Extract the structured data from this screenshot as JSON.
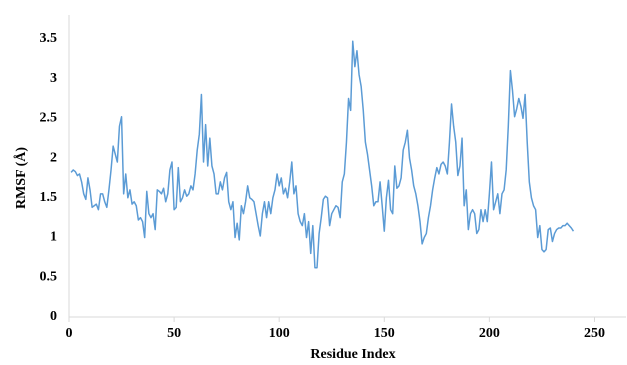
{
  "chart_data": {
    "type": "line",
    "x_label": "Residue Index",
    "y_label": "RMSF (Å)",
    "color": "#5b9bd5",
    "x": [
      1,
      2,
      3,
      4,
      5,
      6,
      7,
      8,
      9,
      10,
      11,
      12,
      13,
      14,
      15,
      16,
      17,
      18,
      19,
      20,
      21,
      22,
      23,
      24,
      25,
      26,
      27,
      28,
      29,
      30,
      31,
      32,
      33,
      34,
      35,
      36,
      37,
      38,
      39,
      40,
      41,
      42,
      43,
      44,
      45,
      46,
      47,
      48,
      49,
      50,
      51,
      52,
      53,
      54,
      55,
      56,
      57,
      58,
      59,
      60,
      61,
      62,
      63,
      64,
      65,
      66,
      67,
      68,
      69,
      70,
      71,
      72,
      73,
      74,
      75,
      76,
      77,
      78,
      79,
      80,
      81,
      82,
      83,
      84,
      85,
      86,
      87,
      88,
      89,
      90,
      91,
      92,
      93,
      94,
      95,
      96,
      97,
      98,
      99,
      100,
      101,
      102,
      103,
      104,
      105,
      106,
      107,
      108,
      109,
      110,
      111,
      112,
      113,
      114,
      115,
      116,
      117,
      118,
      119,
      120,
      121,
      122,
      123,
      124,
      125,
      126,
      127,
      128,
      129,
      130,
      131,
      132,
      133,
      134,
      135,
      136,
      137,
      138,
      139,
      140,
      141,
      142,
      143,
      144,
      145,
      146,
      147,
      148,
      149,
      150,
      151,
      152,
      153,
      154,
      155,
      156,
      157,
      158,
      159,
      160,
      161,
      162,
      163,
      164,
      165,
      166,
      167,
      168,
      169,
      170,
      171,
      172,
      173,
      174,
      175,
      176,
      177,
      178,
      179,
      180,
      181,
      182,
      183,
      184,
      185,
      186,
      187,
      188,
      189,
      190,
      191,
      192,
      193,
      194,
      195,
      196,
      197,
      198,
      199,
      200,
      201,
      202,
      203,
      204,
      205,
      206,
      207,
      208,
      209,
      210,
      211,
      212,
      213,
      214,
      215,
      216,
      217,
      218,
      219,
      220,
      221,
      222,
      223,
      224,
      225,
      226,
      227,
      228,
      229,
      230,
      231,
      232,
      233,
      234,
      235,
      236,
      237,
      238,
      239,
      240
    ],
    "values": [
      1.82,
      1.85,
      1.83,
      1.78,
      1.8,
      1.7,
      1.55,
      1.48,
      1.75,
      1.6,
      1.38,
      1.4,
      1.42,
      1.35,
      1.55,
      1.55,
      1.45,
      1.38,
      1.6,
      1.85,
      2.15,
      2.05,
      1.95,
      2.4,
      2.52,
      1.55,
      1.8,
      1.5,
      1.6,
      1.42,
      1.45,
      1.4,
      1.22,
      1.25,
      1.2,
      1.0,
      1.58,
      1.3,
      1.25,
      1.3,
      1.1,
      1.6,
      1.58,
      1.55,
      1.62,
      1.45,
      1.55,
      1.85,
      1.95,
      1.35,
      1.38,
      1.88,
      1.45,
      1.5,
      1.6,
      1.52,
      1.55,
      1.65,
      1.6,
      1.8,
      2.1,
      2.3,
      2.8,
      1.95,
      2.42,
      1.9,
      2.25,
      1.9,
      1.8,
      1.55,
      1.55,
      1.7,
      1.6,
      1.75,
      1.82,
      1.45,
      1.35,
      1.45,
      1.0,
      1.18,
      0.97,
      1.4,
      1.3,
      1.45,
      1.65,
      1.5,
      1.48,
      1.45,
      1.3,
      1.15,
      1.02,
      1.3,
      1.45,
      1.25,
      1.45,
      1.3,
      1.5,
      1.6,
      1.8,
      1.65,
      1.75,
      1.55,
      1.62,
      1.5,
      1.7,
      1.95,
      1.55,
      1.65,
      1.3,
      1.2,
      1.15,
      1.3,
      1.0,
      1.2,
      0.8,
      1.15,
      0.62,
      0.62,
      1.05,
      1.25,
      1.48,
      1.52,
      1.5,
      1.15,
      1.3,
      1.35,
      1.4,
      1.38,
      1.25,
      1.7,
      1.8,
      2.2,
      2.75,
      2.6,
      3.47,
      3.15,
      3.35,
      3.05,
      2.9,
      2.6,
      2.2,
      2.05,
      1.85,
      1.65,
      1.4,
      1.45,
      1.45,
      1.7,
      1.4,
      1.08,
      1.5,
      1.72,
      1.35,
      1.3,
      1.9,
      1.62,
      1.65,
      1.75,
      2.1,
      2.2,
      2.35,
      2.0,
      1.85,
      1.65,
      1.55,
      1.4,
      1.2,
      0.92,
      1.0,
      1.05,
      1.25,
      1.4,
      1.6,
      1.75,
      1.88,
      1.8,
      1.92,
      1.95,
      1.9,
      1.8,
      2.2,
      2.68,
      2.4,
      2.2,
      1.78,
      1.9,
      2.25,
      1.4,
      1.6,
      1.1,
      1.3,
      1.35,
      1.3,
      1.05,
      1.1,
      1.35,
      1.2,
      1.35,
      1.2,
      1.55,
      1.95,
      1.35,
      1.45,
      1.55,
      1.3,
      1.55,
      1.6,
      1.85,
      2.4,
      3.1,
      2.85,
      2.52,
      2.62,
      2.75,
      2.65,
      2.5,
      2.8,
      2.2,
      1.7,
      1.5,
      1.4,
      1.35,
      1.0,
      1.15,
      0.85,
      0.82,
      0.85,
      1.1,
      1.12,
      0.95,
      1.05,
      1.1,
      1.12,
      1.12,
      1.15,
      1.15,
      1.18,
      1.15,
      1.12,
      1.08
    ],
    "xlim": [
      0,
      265
    ],
    "xticks": [
      0,
      50,
      100,
      150,
      200,
      250
    ],
    "ylim": [
      0,
      3.8
    ],
    "yticks": [
      0,
      0.5,
      1,
      1.5,
      2,
      2.5,
      3,
      3.5
    ]
  }
}
